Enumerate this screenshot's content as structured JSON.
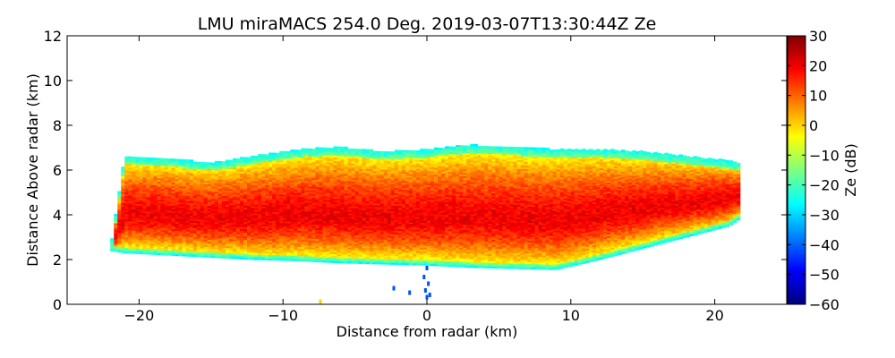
{
  "chart_data": {
    "type": "heatmap",
    "title": "LMU miraMACS 254.0 Deg. 2019-03-07T13:30:44Z  Ze",
    "xlabel": "Distance from radar (km)",
    "ylabel": "Distance Above radar  (km)",
    "xlim": [
      -25,
      25
    ],
    "ylim": [
      0,
      12
    ],
    "x_ticks": [
      -20,
      -10,
      0,
      10,
      20
    ],
    "y_ticks": [
      0,
      2,
      4,
      6,
      8,
      10,
      12
    ],
    "colorbar": {
      "label": "Ze (dB)",
      "range": [
        -60,
        30
      ],
      "ticks": [
        30,
        20,
        10,
        0,
        -10,
        -20,
        -30,
        -40,
        -50,
        -60
      ],
      "colormap": "jet"
    },
    "grid": false,
    "echo_region": {
      "x": [
        -22,
        -21,
        -18,
        -15,
        -12,
        -9,
        -6,
        -3,
        0,
        3,
        6,
        9,
        12,
        15,
        18,
        21,
        21.7
      ],
      "top_km": [
        2.4,
        6.6,
        6.5,
        6.3,
        6.6,
        6.9,
        7.0,
        6.8,
        6.9,
        7.1,
        7.0,
        6.9,
        6.9,
        6.8,
        6.6,
        6.4,
        6.3
      ],
      "bottom_km": [
        2.4,
        2.3,
        2.2,
        2.1,
        2.0,
        1.95,
        1.85,
        1.8,
        1.75,
        1.65,
        1.6,
        1.55,
        2.0,
        2.5,
        3.0,
        3.5,
        3.8
      ],
      "core_dBZ_max": 20,
      "edge_dBZ": -25
    },
    "ground_clutter": {
      "points": [
        [
          0,
          1.6
        ],
        [
          -0.2,
          1.2
        ],
        [
          0.1,
          0.9
        ],
        [
          -0.1,
          0.6
        ],
        [
          0.2,
          0.4
        ],
        [
          -2.3,
          0.7
        ],
        [
          -1.2,
          0.5
        ],
        [
          0,
          0.3
        ],
        [
          -7.4,
          0.1
        ]
      ]
    }
  }
}
